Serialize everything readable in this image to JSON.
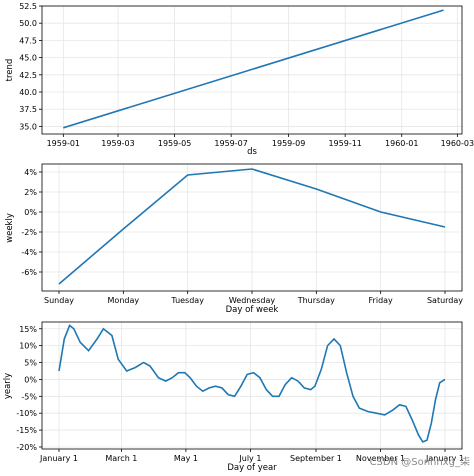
{
  "chart_data": [
    {
      "type": "line",
      "xlabel": "ds",
      "ylabel": "trend",
      "x": [
        "1959-01-01",
        "1960-02-15"
      ],
      "values": [
        34.8,
        51.9
      ],
      "xlim": [
        "1958-12-09",
        "1960-03-06"
      ],
      "ylim": [
        33.9,
        52.5
      ],
      "xticks": [
        "1959-01",
        "1959-03",
        "1959-05",
        "1959-07",
        "1959-09",
        "1959-11",
        "1960-01",
        "1960-03"
      ],
      "yticks": [
        "35.0",
        "37.5",
        "40.0",
        "42.5",
        "45.0",
        "47.5",
        "50.0",
        "52.5"
      ],
      "ytick_values": [
        35.0,
        37.5,
        40.0,
        42.5,
        45.0,
        47.5,
        50.0,
        52.5
      ],
      "grid": true,
      "color": "#1f77b4"
    },
    {
      "type": "line",
      "xlabel": "Day of week",
      "ylabel": "weekly",
      "categories": [
        "Sunday",
        "Monday",
        "Tuesday",
        "Wednesday",
        "Thursday",
        "Friday",
        "Saturday"
      ],
      "values": [
        -7.2,
        -1.7,
        3.7,
        4.3,
        2.3,
        0.0,
        -1.5
      ],
      "ylim": [
        -7.9,
        4.8
      ],
      "yticks": [
        "-6%",
        "-4%",
        "-2%",
        "0%",
        "2%",
        "4%"
      ],
      "ytick_values": [
        -6,
        -4,
        -2,
        0,
        2,
        4
      ],
      "grid": true,
      "color": "#1f77b4"
    },
    {
      "type": "line",
      "xlabel": "Day of year",
      "ylabel": "yearly",
      "xticks": [
        "January 1",
        "March 1",
        "May 1",
        "July 1",
        "September 1",
        "November 1",
        "January 1"
      ],
      "xtick_values": [
        0,
        59,
        120,
        181,
        243,
        304,
        365
      ],
      "x": [
        0,
        5,
        10,
        14,
        20,
        28,
        36,
        42,
        50,
        56,
        64,
        72,
        80,
        86,
        94,
        101,
        107,
        113,
        119,
        124,
        130,
        136,
        142,
        148,
        154,
        160,
        166,
        172,
        178,
        184,
        190,
        196,
        202,
        208,
        214,
        220,
        226,
        232,
        238,
        242,
        248,
        254,
        260,
        266,
        272,
        278,
        284,
        292,
        300,
        308,
        316,
        322,
        328,
        334,
        340,
        344,
        348,
        352,
        356,
        360,
        365
      ],
      "values": [
        2.5,
        12,
        16,
        15,
        11,
        8.5,
        12,
        15,
        13,
        6,
        2.5,
        3.5,
        5,
        4,
        0.5,
        -0.5,
        0.5,
        2,
        2,
        0.5,
        -2,
        -3.5,
        -2.5,
        -2,
        -2.5,
        -4.5,
        -5,
        -2,
        1.5,
        2,
        0.5,
        -3,
        -5,
        -5,
        -1.5,
        0.5,
        -0.5,
        -2.5,
        -3,
        -2,
        3,
        10,
        12,
        10,
        2,
        -5,
        -8.5,
        -9.5,
        -10,
        -10.5,
        -9,
        -7.5,
        -8,
        -12,
        -16.5,
        -18.5,
        -18,
        -13,
        -6,
        -1,
        0
      ],
      "ylim": [
        -20.6,
        17
      ],
      "yticks": [
        "15%",
        "10%",
        "5%",
        "0%",
        "-5%",
        "-10%",
        "-15%",
        "-20%"
      ],
      "ytick_values": [
        15,
        10,
        5,
        0,
        -5,
        -10,
        -15,
        -20
      ],
      "grid": true,
      "color": "#1f77b4"
    }
  ],
  "watermark": "CSDN @Sonhhxg_柒"
}
